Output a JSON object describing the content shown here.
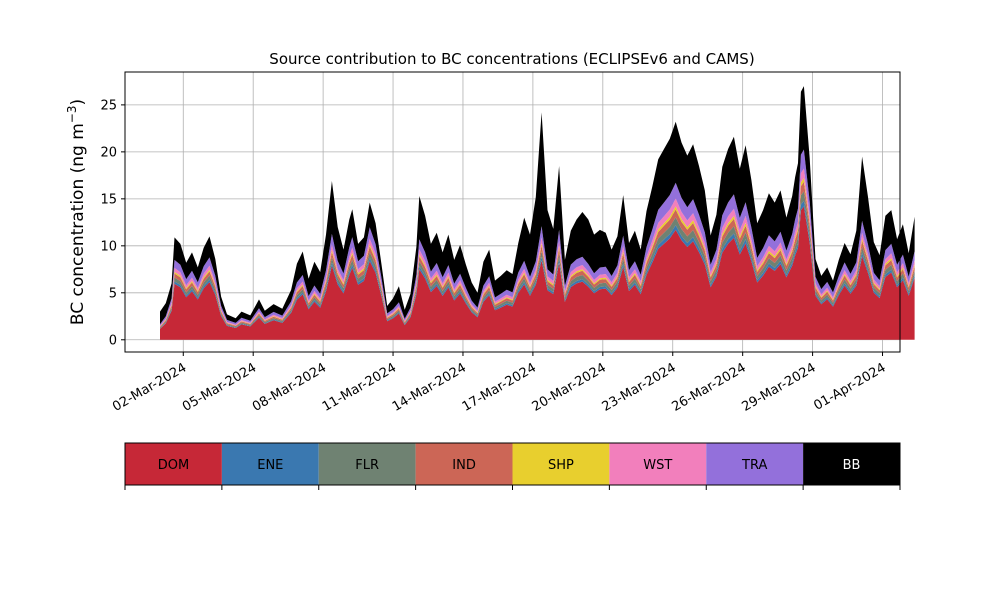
{
  "chart_data": {
    "type": "area",
    "stacked": true,
    "title": "Source contribution to BC concentrations (ECLIPSEv6 and CAMS)",
    "xlabel": "",
    "ylabel": "BC concentration (ng m",
    "ylabel_sup": "−3",
    "ylabel_close": ")",
    "ylim": [
      -1.3,
      28.5
    ],
    "yticks": [
      "0",
      "5",
      "10",
      "15",
      "20",
      "25"
    ],
    "ytick_values": [
      0,
      5,
      10,
      15,
      20,
      25
    ],
    "xlim": [
      "2024-02-28T12:00",
      "2024-04-01T18:00"
    ],
    "xticks": [
      "02-Mar-2024",
      "05-Mar-2024",
      "08-Mar-2024",
      "11-Mar-2024",
      "14-Mar-2024",
      "17-Mar-2024",
      "20-Mar-2024",
      "23-Mar-2024",
      "26-Mar-2024",
      "29-Mar-2024",
      "01-Apr-2024"
    ],
    "xtick_dates": [
      "2024-03-02",
      "2024-03-05",
      "2024-03-08",
      "2024-03-11",
      "2024-03-14",
      "2024-03-17",
      "2024-03-20",
      "2024-03-23",
      "2024-03-26",
      "2024-03-29",
      "2024-04-01"
    ],
    "grid": true,
    "series_names": [
      "DOM",
      "ENE",
      "FLR",
      "IND",
      "SHP",
      "WST",
      "TRA",
      "BB"
    ],
    "colors": [
      "#c62837",
      "#3a78b0",
      "#6f8272",
      "#cc6656",
      "#e8cf2e",
      "#f27fbc",
      "#9370db",
      "#000000"
    ],
    "total_bc": [
      [
        "2024-03-01T00:00",
        3.0
      ],
      [
        "2024-03-01T06:00",
        3.9
      ],
      [
        "2024-03-01T12:00",
        6.0
      ],
      [
        "2024-03-01T15:00",
        10.9
      ],
      [
        "2024-03-01T21:00",
        10.2
      ],
      [
        "2024-03-02T03:00",
        8.2
      ],
      [
        "2024-03-02T09:00",
        9.3
      ],
      [
        "2024-03-02T15:00",
        7.7
      ],
      [
        "2024-03-02T21:00",
        9.8
      ],
      [
        "2024-03-03T03:00",
        11.0
      ],
      [
        "2024-03-03T09:00",
        8.6
      ],
      [
        "2024-03-03T15:00",
        4.6
      ],
      [
        "2024-03-03T21:00",
        2.7
      ],
      [
        "2024-03-04T06:00",
        2.3
      ],
      [
        "2024-03-04T12:00",
        3.0
      ],
      [
        "2024-03-04T21:00",
        2.6
      ],
      [
        "2024-03-05T06:00",
        4.3
      ],
      [
        "2024-03-05T12:00",
        3.1
      ],
      [
        "2024-03-05T21:00",
        3.8
      ],
      [
        "2024-03-06T06:00",
        3.3
      ],
      [
        "2024-03-06T15:00",
        5.3
      ],
      [
        "2024-03-06T21:00",
        8.1
      ],
      [
        "2024-03-07T03:00",
        9.4
      ],
      [
        "2024-03-07T09:00",
        6.5
      ],
      [
        "2024-03-07T15:00",
        8.3
      ],
      [
        "2024-03-07T21:00",
        7.2
      ],
      [
        "2024-03-08T03:00",
        11.2
      ],
      [
        "2024-03-08T09:00",
        16.9
      ],
      [
        "2024-03-08T15:00",
        12.0
      ],
      [
        "2024-03-08T21:00",
        9.6
      ],
      [
        "2024-03-09T03:00",
        12.8
      ],
      [
        "2024-03-09T06:00",
        13.9
      ],
      [
        "2024-03-09T12:00",
        10.2
      ],
      [
        "2024-03-09T18:00",
        10.9
      ],
      [
        "2024-03-10T00:00",
        14.6
      ],
      [
        "2024-03-10T06:00",
        12.4
      ],
      [
        "2024-03-10T12:00",
        8.1
      ],
      [
        "2024-03-10T18:00",
        3.6
      ],
      [
        "2024-03-11T00:00",
        4.4
      ],
      [
        "2024-03-11T06:00",
        5.7
      ],
      [
        "2024-03-11T12:00",
        3.2
      ],
      [
        "2024-03-11T18:00",
        4.9
      ],
      [
        "2024-03-12T00:00",
        9.9
      ],
      [
        "2024-03-12T03:00",
        15.3
      ],
      [
        "2024-03-12T09:00",
        13.2
      ],
      [
        "2024-03-12T15:00",
        10.2
      ],
      [
        "2024-03-12T21:00",
        11.4
      ],
      [
        "2024-03-13T03:00",
        9.3
      ],
      [
        "2024-03-13T09:00",
        11.2
      ],
      [
        "2024-03-13T15:00",
        8.5
      ],
      [
        "2024-03-13T21:00",
        10.1
      ],
      [
        "2024-03-14T03:00",
        8.0
      ],
      [
        "2024-03-14T09:00",
        6.1
      ],
      [
        "2024-03-14T15:00",
        5.0
      ],
      [
        "2024-03-14T21:00",
        8.3
      ],
      [
        "2024-03-15T03:00",
        9.6
      ],
      [
        "2024-03-15T09:00",
        6.3
      ],
      [
        "2024-03-15T15:00",
        6.8
      ],
      [
        "2024-03-15T21:00",
        7.4
      ],
      [
        "2024-03-16T03:00",
        7.0
      ],
      [
        "2024-03-16T09:00",
        10.3
      ],
      [
        "2024-03-16T15:00",
        13.0
      ],
      [
        "2024-03-16T21:00",
        11.2
      ],
      [
        "2024-03-17T03:00",
        15.2
      ],
      [
        "2024-03-17T09:00",
        24.2
      ],
      [
        "2024-03-17T15:00",
        13.8
      ],
      [
        "2024-03-17T21:00",
        11.8
      ],
      [
        "2024-03-18T03:00",
        18.5
      ],
      [
        "2024-03-18T09:00",
        8.5
      ],
      [
        "2024-03-18T15:00",
        11.6
      ],
      [
        "2024-03-18T21:00",
        12.8
      ],
      [
        "2024-03-19T03:00",
        13.6
      ],
      [
        "2024-03-19T09:00",
        12.8
      ],
      [
        "2024-03-19T15:00",
        11.2
      ],
      [
        "2024-03-19T21:00",
        11.7
      ],
      [
        "2024-03-20T03:00",
        11.4
      ],
      [
        "2024-03-20T09:00",
        9.6
      ],
      [
        "2024-03-20T15:00",
        11.0
      ],
      [
        "2024-03-20T21:00",
        15.4
      ],
      [
        "2024-03-21T03:00",
        10.3
      ],
      [
        "2024-03-21T09:00",
        11.6
      ],
      [
        "2024-03-21T15:00",
        9.6
      ],
      [
        "2024-03-21T21:00",
        13.7
      ],
      [
        "2024-03-22T03:00",
        16.3
      ],
      [
        "2024-03-22T09:00",
        19.2
      ],
      [
        "2024-03-22T15:00",
        20.3
      ],
      [
        "2024-03-22T21:00",
        21.4
      ],
      [
        "2024-03-23T03:00",
        23.2
      ],
      [
        "2024-03-23T09:00",
        21.0
      ],
      [
        "2024-03-23T15:00",
        19.6
      ],
      [
        "2024-03-23T21:00",
        20.8
      ],
      [
        "2024-03-24T03:00",
        18.5
      ],
      [
        "2024-03-24T09:00",
        15.9
      ],
      [
        "2024-03-24T15:00",
        11.1
      ],
      [
        "2024-03-24T21:00",
        13.3
      ],
      [
        "2024-03-25T03:00",
        18.4
      ],
      [
        "2024-03-25T09:00",
        20.3
      ],
      [
        "2024-03-25T15:00",
        21.6
      ],
      [
        "2024-03-25T21:00",
        18.2
      ],
      [
        "2024-03-26T03:00",
        20.7
      ],
      [
        "2024-03-26T09:00",
        17.0
      ],
      [
        "2024-03-26T15:00",
        12.4
      ],
      [
        "2024-03-26T21:00",
        13.8
      ],
      [
        "2024-03-27T03:00",
        15.6
      ],
      [
        "2024-03-27T09:00",
        14.6
      ],
      [
        "2024-03-27T15:00",
        15.9
      ],
      [
        "2024-03-27T21:00",
        13.0
      ],
      [
        "2024-03-28T03:00",
        15.3
      ],
      [
        "2024-03-28T06:00",
        17.3
      ],
      [
        "2024-03-28T09:00",
        18.8
      ],
      [
        "2024-03-28T12:00",
        26.4
      ],
      [
        "2024-03-28T15:00",
        27.0
      ],
      [
        "2024-03-28T21:00",
        19.3
      ],
      [
        "2024-03-29T03:00",
        8.6
      ],
      [
        "2024-03-29T09:00",
        6.8
      ],
      [
        "2024-03-29T15:00",
        7.7
      ],
      [
        "2024-03-29T21:00",
        6.3
      ],
      [
        "2024-03-30T03:00",
        8.5
      ],
      [
        "2024-03-30T09:00",
        10.3
      ],
      [
        "2024-03-30T15:00",
        9.1
      ],
      [
        "2024-03-30T21:00",
        11.6
      ],
      [
        "2024-03-31T03:00",
        19.5
      ],
      [
        "2024-03-31T09:00",
        15.2
      ],
      [
        "2024-03-31T15:00",
        10.4
      ],
      [
        "2024-03-31T21:00",
        9.0
      ],
      [
        "2024-04-01T03:00",
        13.2
      ],
      [
        "2024-04-01T09:00",
        13.8
      ],
      [
        "2024-04-01T15:00",
        10.7
      ],
      [
        "2024-04-01T21:00",
        12.3
      ],
      [
        "2024-04-02T03:00",
        9.2
      ],
      [
        "2024-04-02T09:00",
        13.1
      ]
    ],
    "anthropogenic_fraction": [
      [
        "2024-03-01T00:00",
        0.55
      ],
      [
        "2024-03-01T15:00",
        0.78
      ],
      [
        "2024-03-03T00:00",
        0.8
      ],
      [
        "2024-03-04T00:00",
        0.78
      ],
      [
        "2024-03-06T12:00",
        0.78
      ],
      [
        "2024-03-08T06:00",
        0.65
      ],
      [
        "2024-03-09T12:00",
        0.82
      ],
      [
        "2024-03-10T12:00",
        0.82
      ],
      [
        "2024-03-11T06:00",
        0.7
      ],
      [
        "2024-03-12T03:00",
        0.7
      ],
      [
        "2024-03-13T00:00",
        0.72
      ],
      [
        "2024-03-14T12:00",
        0.68
      ],
      [
        "2024-03-15T12:00",
        0.72
      ],
      [
        "2024-03-16T06:00",
        0.72
      ],
      [
        "2024-03-17T09:00",
        0.5
      ],
      [
        "2024-03-18T12:00",
        0.7
      ],
      [
        "2024-03-19T12:00",
        0.62
      ],
      [
        "2024-03-20T12:00",
        0.72
      ],
      [
        "2024-03-21T12:00",
        0.72
      ],
      [
        "2024-03-22T12:00",
        0.72
      ],
      [
        "2024-03-23T03:00",
        0.72
      ],
      [
        "2024-03-24T12:00",
        0.72
      ],
      [
        "2024-03-25T12:00",
        0.72
      ],
      [
        "2024-03-26T12:00",
        0.7
      ],
      [
        "2024-03-27T12:00",
        0.72
      ],
      [
        "2024-03-28T15:00",
        0.75
      ],
      [
        "2024-03-29T12:00",
        0.8
      ],
      [
        "2024-03-30T12:00",
        0.8
      ],
      [
        "2024-03-31T03:00",
        0.65
      ],
      [
        "2024-04-01T12:00",
        0.75
      ],
      [
        "2024-04-02T09:00",
        0.72
      ]
    ],
    "sector_shares_of_anthropogenic": {
      "DOM": 0.7,
      "ENE": 0.03,
      "FLR": 0.05,
      "IND": 0.05,
      "SHP": 0.02,
      "WST": 0.05,
      "TRA": 0.1
    }
  },
  "legend": {
    "items": [
      "DOM",
      "ENE",
      "FLR",
      "IND",
      "SHP",
      "WST",
      "TRA",
      "BB"
    ],
    "colors": [
      "#c62837",
      "#3a78b0",
      "#6f8272",
      "#cc6656",
      "#e8cf2e",
      "#f27fbc",
      "#9370db",
      "#000000"
    ],
    "text_colors": [
      "#000000",
      "#000000",
      "#000000",
      "#000000",
      "#000000",
      "#000000",
      "#000000",
      "#ffffff"
    ]
  }
}
